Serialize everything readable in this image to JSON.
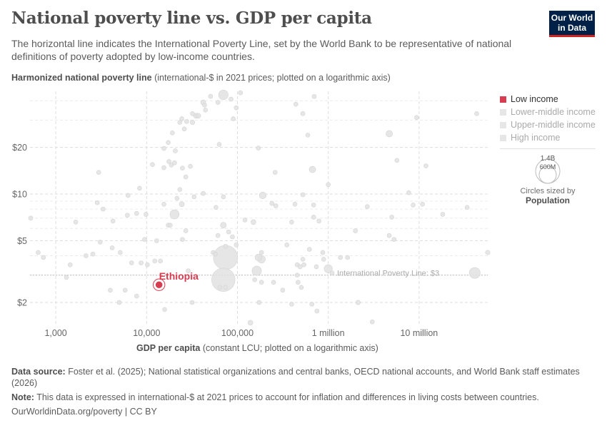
{
  "header": {
    "title": "National poverty line vs. GDP per capita",
    "subtitle": "The horizontal line indicates the International Poverty Line, set by the World Bank to be representative of national definitions of poverty adopted by low-income countries.",
    "logo": "Our World in Data"
  },
  "chart_data": {
    "type": "scatter",
    "title": "National poverty line vs. GDP per capita",
    "xlabel_bold": "GDP per capita",
    "xlabel_rest": "(constant LCU; plotted on a logarithmic axis)",
    "ylabel_bold": "Harmonized national poverty line",
    "ylabel_rest": "(international-$ in 2021 prices; plotted on a logarithmic axis)",
    "x_scale": "log",
    "y_scale": "log",
    "xlim": [
      520,
      57000000
    ],
    "ylim": [
      1.44,
      46
    ],
    "x_ticks": [
      {
        "v": 1000,
        "label": "1,000"
      },
      {
        "v": 10000,
        "label": "10,000"
      },
      {
        "v": 100000,
        "label": "100,000"
      },
      {
        "v": 1000000,
        "label": "1 million"
      },
      {
        "v": 10000000,
        "label": "10 million"
      }
    ],
    "y_ticks": [
      {
        "v": 2,
        "label": "$2"
      },
      {
        "v": 5,
        "label": "$5"
      },
      {
        "v": 10,
        "label": "$10"
      },
      {
        "v": 20,
        "label": "$20"
      }
    ],
    "grid": true,
    "reference_line": {
      "y": 3,
      "label": "International Poverty Line: $3"
    },
    "highlight": {
      "name": "Ethiopia",
      "x": 13700,
      "y": 2.6,
      "population_millions": 130,
      "color": "#d73c50"
    },
    "point_fields": [
      "gdp_per_capita",
      "poverty_line",
      "population_millions"
    ],
    "points": [
      [
        530,
        7.0,
        25
      ],
      [
        640,
        4.2,
        10
      ],
      [
        730,
        3.9,
        10
      ],
      [
        1310,
        2.9,
        10
      ],
      [
        1440,
        3.5,
        10
      ],
      [
        1660,
        6.6,
        10
      ],
      [
        2150,
        4.0,
        10
      ],
      [
        2560,
        4.1,
        10
      ],
      [
        2860,
        8.8,
        10
      ],
      [
        2970,
        13.8,
        10
      ],
      [
        3080,
        4.9,
        10
      ],
      [
        3320,
        8.0,
        10
      ],
      [
        3980,
        2.4,
        10
      ],
      [
        4180,
        4.5,
        10
      ],
      [
        4260,
        6.7,
        10
      ],
      [
        5000,
        2.0,
        10
      ],
      [
        5120,
        4.2,
        10
      ],
      [
        5800,
        2.4,
        10
      ],
      [
        6140,
        7.3,
        10
      ],
      [
        6250,
        9.8,
        10
      ],
      [
        6830,
        3.6,
        10
      ],
      [
        7770,
        7.5,
        10
      ],
      [
        7770,
        2.2,
        10
      ],
      [
        8360,
        10.9,
        10
      ],
      [
        8700,
        3.6,
        10
      ],
      [
        9500,
        5.1,
        10
      ],
      [
        9840,
        7.4,
        10
      ],
      [
        10200,
        3.5,
        10
      ],
      [
        11600,
        15.5,
        10
      ],
      [
        12300,
        3.7,
        25
      ],
      [
        12900,
        5.0,
        10
      ],
      [
        14200,
        3.7,
        10
      ],
      [
        15500,
        19.7,
        10
      ],
      [
        15500,
        14.8,
        30
      ],
      [
        15800,
        1.8,
        10
      ],
      [
        15500,
        8.6,
        10
      ],
      [
        17300,
        21.5,
        10
      ],
      [
        17300,
        6.3,
        25
      ],
      [
        17600,
        16.2,
        10
      ],
      [
        18200,
        6.3,
        10
      ],
      [
        18700,
        15.4,
        10
      ],
      [
        19200,
        24.8,
        10
      ],
      [
        20300,
        7.4,
        200
      ],
      [
        20300,
        15.9,
        10
      ],
      [
        20700,
        19.0,
        10
      ],
      [
        21600,
        9.4,
        10
      ],
      [
        23200,
        29,
        10
      ],
      [
        23200,
        10.7,
        10
      ],
      [
        24400,
        30.6,
        10
      ],
      [
        24400,
        8.6,
        60
      ],
      [
        24800,
        5.1,
        10
      ],
      [
        24800,
        14.7,
        10
      ],
      [
        26000,
        26.3,
        30
      ],
      [
        27000,
        12.9,
        10
      ],
      [
        27000,
        5.8,
        10
      ],
      [
        27600,
        29.4,
        10
      ],
      [
        28700,
        3.2,
        20
      ],
      [
        30300,
        15.1,
        10
      ],
      [
        31700,
        2.0,
        20
      ],
      [
        32000,
        29,
        50
      ],
      [
        32000,
        33,
        10
      ],
      [
        33300,
        9.6,
        10
      ],
      [
        35000,
        32,
        60
      ],
      [
        37000,
        32,
        60
      ],
      [
        42000,
        10.1,
        20
      ],
      [
        42000,
        39,
        60
      ],
      [
        43500,
        37.5,
        20
      ],
      [
        44500,
        34.8,
        10
      ],
      [
        50600,
        42.7,
        10
      ],
      [
        54000,
        4.2,
        25
      ],
      [
        57000,
        4.1,
        10
      ],
      [
        58000,
        8.2,
        20
      ],
      [
        61000,
        39,
        25
      ],
      [
        61000,
        5.4,
        25
      ],
      [
        63000,
        20.9,
        30
      ],
      [
        64000,
        2.5,
        15
      ],
      [
        70000,
        43.6,
        220
      ],
      [
        70000,
        6.3,
        80
      ],
      [
        70000,
        9.6,
        10
      ],
      [
        74000,
        3.9,
        1400
      ],
      [
        70000,
        2.8,
        1300
      ],
      [
        74000,
        4.6,
        10
      ],
      [
        74000,
        2.5,
        10
      ],
      [
        80000,
        5.7,
        40
      ],
      [
        85000,
        40.9,
        10
      ],
      [
        88000,
        5.3,
        20
      ],
      [
        90000,
        30.6,
        10
      ],
      [
        97000,
        36,
        20
      ],
      [
        97000,
        4.7,
        10
      ],
      [
        108000,
        45,
        10
      ],
      [
        121000,
        6.8,
        10
      ],
      [
        139000,
        1.48,
        60
      ],
      [
        150000,
        6.6,
        60
      ],
      [
        155000,
        2.8,
        10
      ],
      [
        163000,
        3.2,
        210
      ],
      [
        170000,
        19.8,
        10
      ],
      [
        170000,
        3.9,
        110
      ],
      [
        184000,
        3.8,
        140
      ],
      [
        184000,
        4.2,
        40
      ],
      [
        184000,
        2.7,
        40
      ],
      [
        190000,
        9.8,
        110
      ],
      [
        173000,
        2.0,
        10
      ],
      [
        240000,
        8.7,
        10
      ],
      [
        250000,
        2.7,
        10
      ],
      [
        260000,
        13.8,
        10
      ],
      [
        265000,
        8.4,
        10
      ],
      [
        315000,
        2.4,
        15
      ],
      [
        350000,
        4.7,
        10
      ],
      [
        395000,
        6.6,
        10
      ],
      [
        395000,
        1.95,
        10
      ],
      [
        430000,
        8.6,
        10
      ],
      [
        440000,
        38,
        10
      ],
      [
        455000,
        3.5,
        10
      ],
      [
        455000,
        3.0,
        10
      ],
      [
        465000,
        2.7,
        10
      ],
      [
        490000,
        3.4,
        10
      ],
      [
        505000,
        2.5,
        40
      ],
      [
        525000,
        33,
        10
      ],
      [
        525000,
        9.9,
        10
      ],
      [
        525000,
        3.8,
        10
      ],
      [
        540000,
        3.5,
        10
      ],
      [
        595000,
        24,
        10
      ],
      [
        620000,
        4.4,
        10
      ],
      [
        660000,
        1.95,
        10
      ],
      [
        670000,
        14.4,
        100
      ],
      [
        690000,
        8.5,
        10
      ],
      [
        690000,
        7.1,
        10
      ],
      [
        700000,
        42.6,
        10
      ],
      [
        740000,
        3.4,
        10
      ],
      [
        750000,
        1.76,
        15
      ],
      [
        790000,
        6.7,
        10
      ],
      [
        870000,
        4.2,
        10
      ],
      [
        890000,
        3.8,
        15
      ],
      [
        1000000,
        11.5,
        10
      ],
      [
        1000000,
        3.3,
        160
      ],
      [
        1100000,
        3.1,
        10
      ],
      [
        1360000,
        3.9,
        20
      ],
      [
        1630000,
        3.9,
        40
      ],
      [
        1990000,
        5.8,
        10
      ],
      [
        2130000,
        2.0,
        50
      ],
      [
        2690000,
        8.3,
        10
      ],
      [
        3050000,
        1.5,
        35
      ],
      [
        4690000,
        24.5,
        100
      ],
      [
        4690000,
        5.4,
        35
      ],
      [
        5000000,
        7.1,
        35
      ],
      [
        5300000,
        5.1,
        15
      ],
      [
        5700000,
        16.5,
        10
      ],
      [
        7700000,
        10.2,
        10
      ],
      [
        8600000,
        8.5,
        10
      ],
      [
        9400000,
        31.2,
        10
      ],
      [
        10900000,
        8.6,
        10
      ],
      [
        11900000,
        15.2,
        10
      ],
      [
        18200000,
        7.4,
        40
      ],
      [
        33800000,
        8.2,
        10
      ],
      [
        41000000,
        3.1,
        280
      ],
      [
        43000000,
        33,
        40
      ],
      [
        57000000,
        4.2,
        50
      ]
    ],
    "legend": {
      "placement": "right",
      "items": [
        {
          "label": "Low income",
          "color": "#d73c50",
          "active": true
        },
        {
          "label": "Lower-middle income",
          "color": "#e6e6e6",
          "active": false
        },
        {
          "label": "Upper-middle income",
          "color": "#e6e6e6",
          "active": false
        },
        {
          "label": "High income",
          "color": "#e6e6e6",
          "active": false
        }
      ]
    },
    "size_legend": {
      "large": "1.4B",
      "small": "600M",
      "caption": "Circles sized by",
      "variable": "Population"
    }
  },
  "footer": {
    "source_label": "Data source:",
    "source": "Foster et al. (2025); National statistical organizations and central banks, OECD national accounts, and World Bank staff estimates (2026)",
    "note_label": "Note:",
    "note": "This data is expressed in international-$ at 2021 prices to account for inflation and differences in living costs between countries.",
    "credit": "OurWorldinData.org/poverty | CC BY"
  }
}
